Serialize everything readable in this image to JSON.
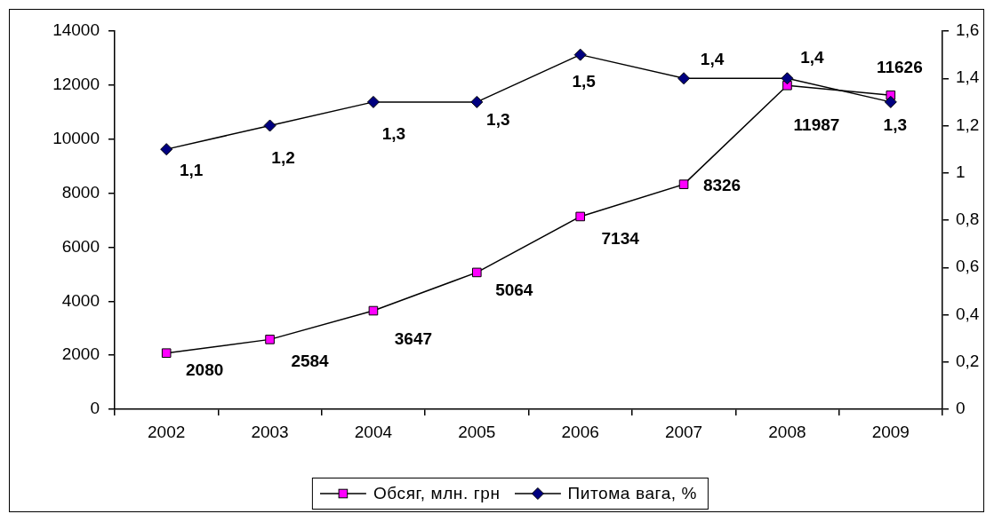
{
  "chart_data": {
    "type": "line",
    "categories": [
      "2002",
      "2003",
      "2004",
      "2005",
      "2006",
      "2007",
      "2008",
      "2009"
    ],
    "series": [
      {
        "name": "Обсяг, млн. грн",
        "color": "#ff00ff",
        "marker": "square",
        "values": [
          2080,
          2584,
          3647,
          5064,
          7134,
          8326,
          11987,
          11626
        ],
        "value_labels": [
          "2080",
          "2584",
          "3647",
          "5064",
          "7134",
          "8326",
          "11987",
          "11626"
        ]
      },
      {
        "name": "Питома вага, %",
        "color": "#000080",
        "marker": "diamond",
        "axis": "y2",
        "values": [
          1.1,
          1.2,
          1.3,
          1.3,
          1.5,
          1.4,
          1.4,
          1.3
        ],
        "value_labels": [
          "1,1",
          "1,2",
          "1,3",
          "1,3",
          "1,5",
          "1,4",
          "1,4",
          "1,3"
        ]
      }
    ],
    "ylim": [
      0,
      14000
    ],
    "yticks": [
      0,
      2000,
      4000,
      6000,
      8000,
      10000,
      12000,
      14000
    ],
    "y2lim": [
      0,
      1.6
    ],
    "y2ticks": [
      0,
      {
        "value": 0.2,
        "label": "0,2"
      },
      {
        "value": 0.4,
        "label": "0,4"
      },
      {
        "value": 0.6,
        "label": "0,6"
      },
      {
        "value": 0.8,
        "label": "0,8"
      },
      1,
      {
        "value": 1.2,
        "label": "1,2"
      },
      {
        "value": 1.4,
        "label": "1,4"
      },
      {
        "value": 1.6,
        "label": "1,6"
      }
    ],
    "legend": "bottom",
    "line_style": "solid"
  }
}
